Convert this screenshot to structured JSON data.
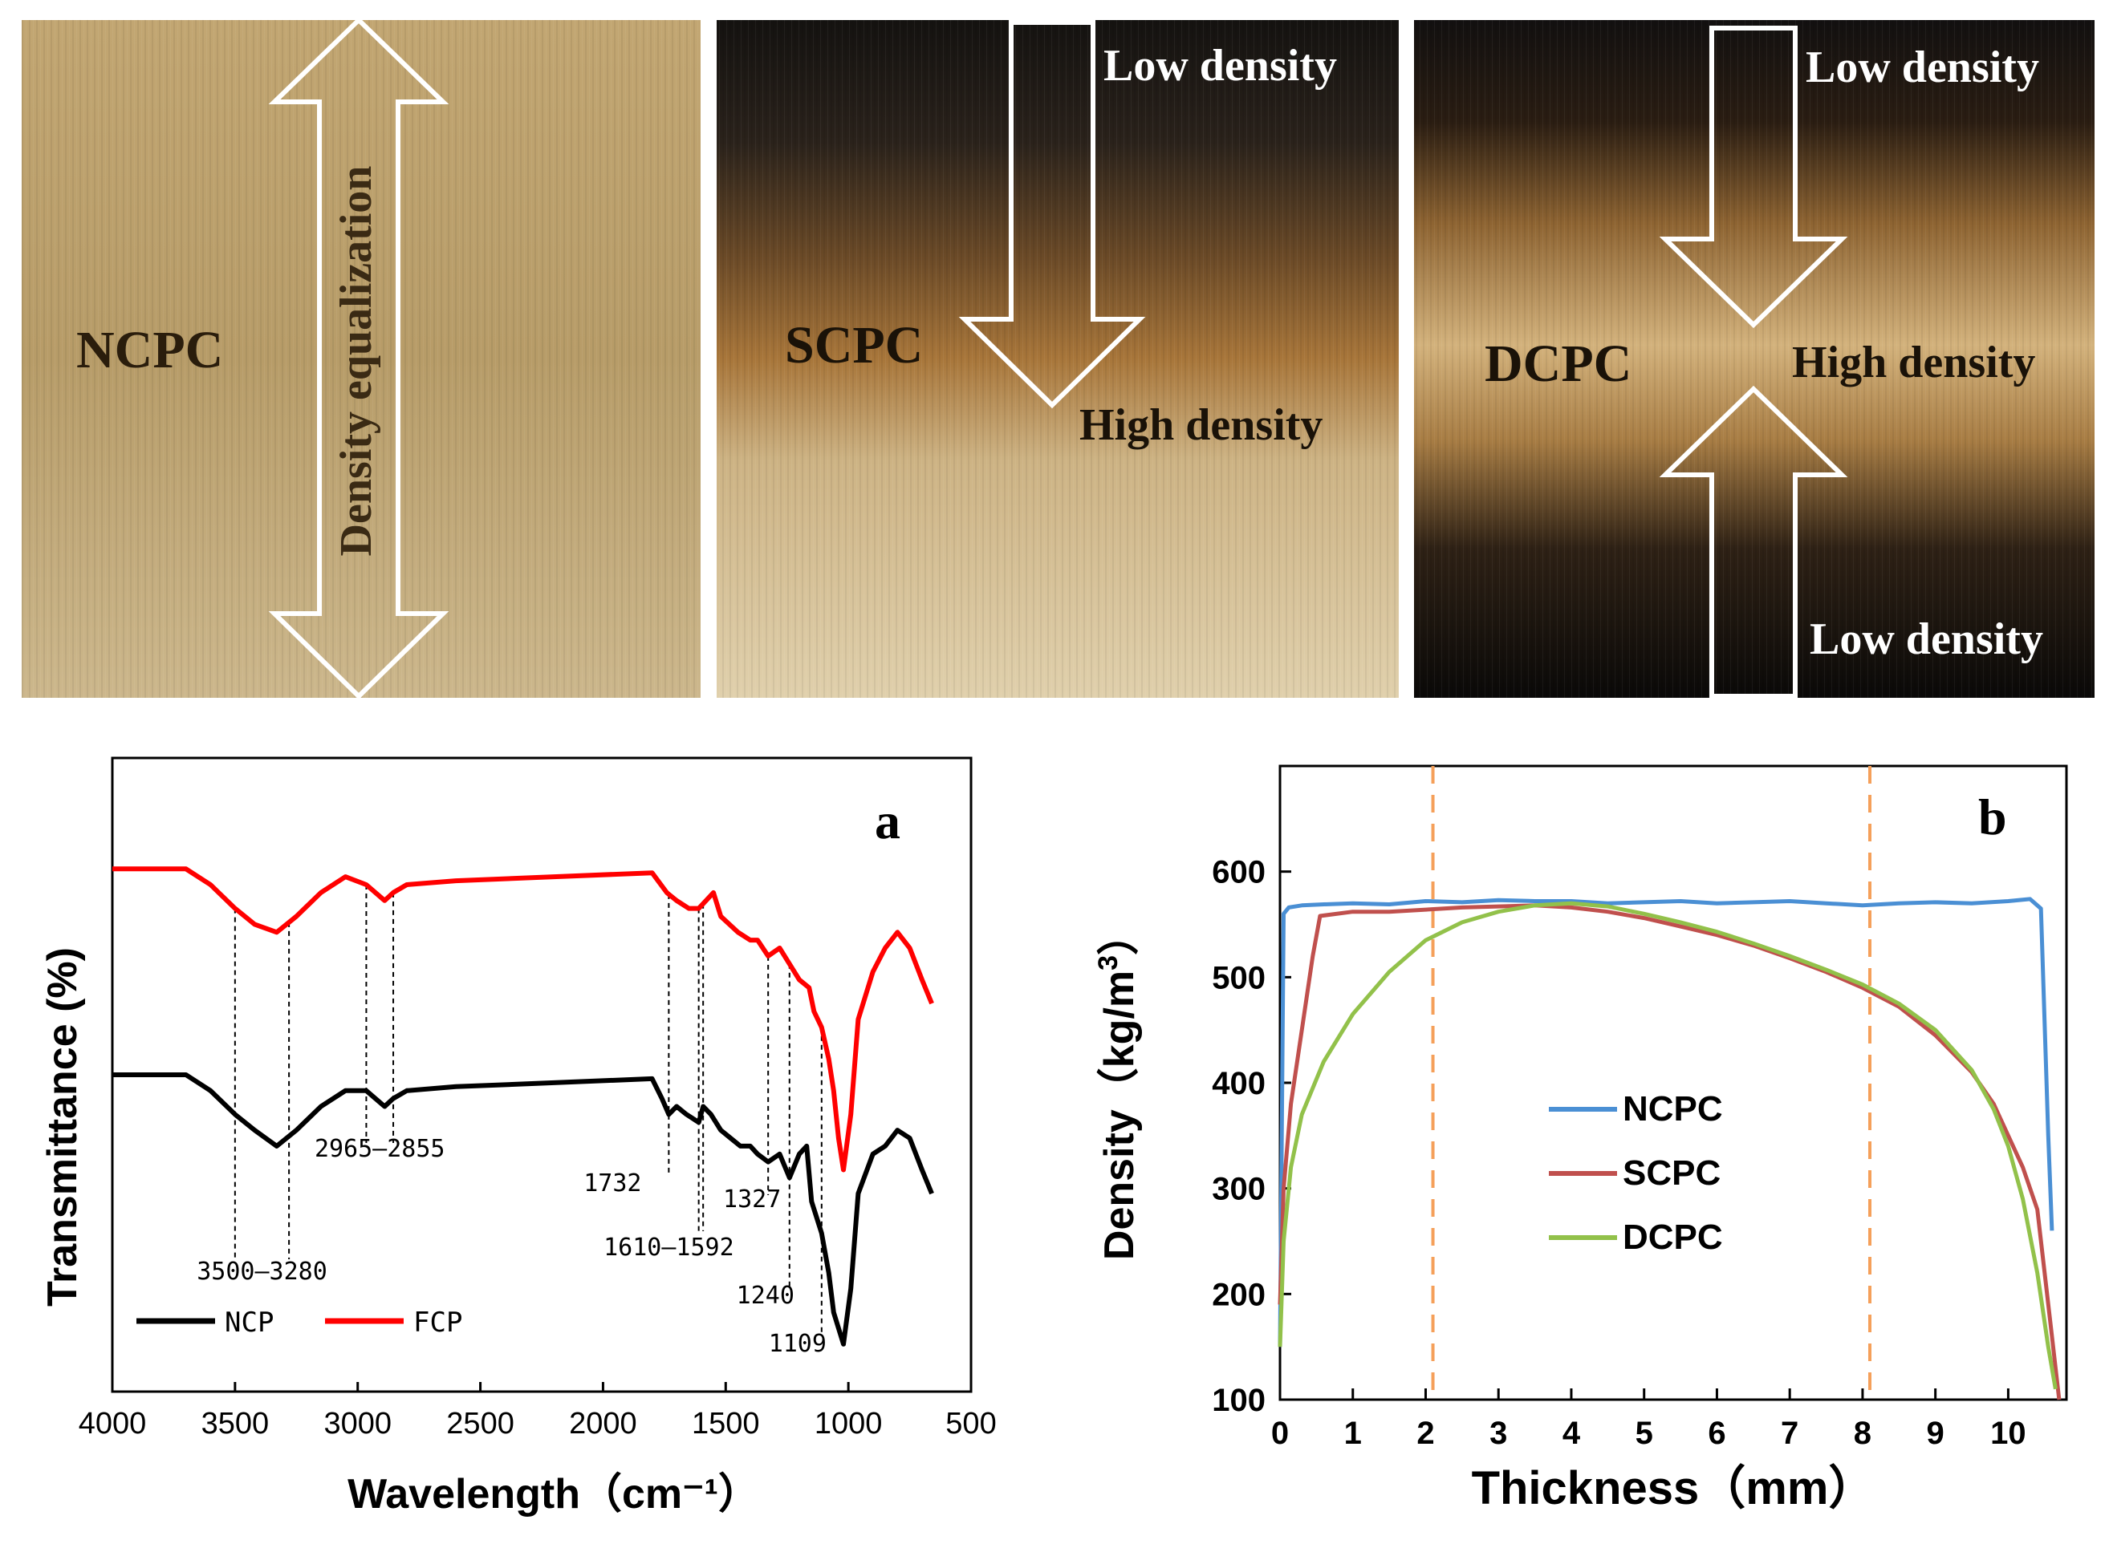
{
  "photos": [
    {
      "sample": "NCPC",
      "arrow_label": "Density equalization",
      "colors": {
        "top": "#c2a672",
        "mid": "#b79c68",
        "bottom": "#ccb78c"
      }
    },
    {
      "sample": "SCPC",
      "labels": [
        "Low density",
        "High density"
      ],
      "colors": {
        "top": "#1c1a17",
        "mid": "#a46f33",
        "bottom": "#dcc9a0"
      }
    },
    {
      "sample": "DCPC",
      "labels": [
        "Low density",
        "High density",
        "Low density"
      ],
      "colors": {
        "top": "#161310",
        "mid": "#c8a26a",
        "bottom": "#0c0a08"
      }
    }
  ],
  "chart_data": [
    {
      "type": "line",
      "panel_label": "a",
      "xlabel": "Wavelength（cm⁻¹）",
      "ylabel": "Transmittance (%)",
      "xlim": [
        4000,
        500
      ],
      "xticks": [
        4000,
        3500,
        3000,
        2500,
        2000,
        1500,
        1000,
        500
      ],
      "y_ticks_shown": false,
      "series": [
        {
          "name": "FCP",
          "color": "#ff0000",
          "x": [
            4000,
            3700,
            3600,
            3500,
            3420,
            3330,
            3250,
            3150,
            3050,
            2965,
            2890,
            2855,
            2800,
            2600,
            2200,
            1800,
            1740,
            1700,
            1650,
            1610,
            1580,
            1550,
            1520,
            1450,
            1400,
            1370,
            1327,
            1280,
            1240,
            1200,
            1160,
            1140,
            1109,
            1080,
            1060,
            1040,
            1020,
            990,
            960,
            900,
            850,
            800,
            750,
            700,
            660
          ],
          "y": [
            86,
            86,
            84,
            81,
            79,
            78,
            80,
            83,
            85,
            84,
            82,
            83,
            84,
            84.5,
            85,
            85.5,
            83,
            82,
            81,
            81,
            82,
            83,
            80,
            78,
            77,
            77,
            75,
            76,
            74,
            72,
            71,
            68,
            66,
            62,
            58,
            52,
            48,
            55,
            67,
            73,
            76,
            78,
            76,
            72,
            69
          ]
        },
        {
          "name": "NCP",
          "color": "#000000",
          "x": [
            4000,
            3700,
            3600,
            3500,
            3420,
            3330,
            3250,
            3150,
            3050,
            2965,
            2890,
            2855,
            2800,
            2600,
            2200,
            1800,
            1760,
            1732,
            1700,
            1660,
            1610,
            1592,
            1560,
            1520,
            1480,
            1440,
            1400,
            1370,
            1327,
            1280,
            1240,
            1200,
            1170,
            1150,
            1109,
            1080,
            1060,
            1040,
            1020,
            990,
            960,
            900,
            850,
            800,
            750,
            700,
            660
          ],
          "y": [
            60,
            60,
            58,
            55,
            53,
            51,
            53,
            56,
            58,
            58,
            56,
            57,
            58,
            58.5,
            59,
            59.5,
            57,
            55,
            56,
            55,
            54,
            56,
            55,
            53,
            52,
            51,
            51,
            50,
            49,
            50,
            47,
            50,
            51,
            44,
            40,
            35,
            30,
            28,
            26,
            33,
            45,
            50,
            51,
            53,
            52,
            48,
            45
          ]
        }
      ],
      "annotations": [
        {
          "x": [
            3500,
            3280
          ],
          "label": "3500—3280"
        },
        {
          "x": [
            2965,
            2855
          ],
          "label": "2965—2855"
        },
        {
          "x": [
            1732
          ],
          "label": "1732"
        },
        {
          "x": [
            1610,
            1592
          ],
          "label": "1610—1592"
        },
        {
          "x": [
            1327
          ],
          "label": "1327"
        },
        {
          "x": [
            1240
          ],
          "label": "1240"
        },
        {
          "x": [
            1109
          ],
          "label": "1109"
        }
      ],
      "legend": [
        "NCP",
        "FCP"
      ]
    },
    {
      "type": "line",
      "panel_label": "b",
      "xlabel": "Thickness（mm）",
      "ylabel": "Density (kg/m3)",
      "ylabel_parts": {
        "main": "Density（kg/m",
        "sup": "3",
        "end": "）"
      },
      "xlim": [
        0,
        10.8
      ],
      "ylim": [
        100,
        700
      ],
      "xticks": [
        0,
        1,
        2,
        3,
        4,
        5,
        6,
        7,
        8,
        9,
        10
      ],
      "yticks": [
        100,
        200,
        300,
        400,
        500,
        600
      ],
      "vlines": [
        2.1,
        8.1
      ],
      "vline_color": "#f5a05a",
      "series": [
        {
          "name": "NCPC",
          "color": "#4a8fd4",
          "x": [
            0,
            0.05,
            0.12,
            0.3,
            0.6,
            1,
            1.5,
            2,
            2.5,
            3,
            3.5,
            4,
            4.5,
            5,
            5.5,
            6,
            6.5,
            7,
            7.5,
            8,
            8.5,
            9,
            9.5,
            10,
            10.3,
            10.45,
            10.55,
            10.6
          ],
          "y": [
            150,
            560,
            566,
            568,
            569,
            570,
            569,
            572,
            571,
            573,
            572,
            572,
            570,
            571,
            572,
            570,
            571,
            572,
            570,
            568,
            570,
            571,
            570,
            572,
            574,
            565,
            350,
            260
          ]
        },
        {
          "name": "SCPC",
          "color": "#c0504d",
          "x": [
            0,
            0.05,
            0.15,
            0.3,
            0.45,
            0.55,
            1,
            1.5,
            2,
            2.5,
            3,
            3.5,
            4,
            4.5,
            5,
            5.5,
            6,
            6.5,
            7,
            7.5,
            8,
            8.5,
            9,
            9.5,
            9.8,
            10,
            10.2,
            10.4,
            10.6,
            10.7
          ],
          "y": [
            190,
            300,
            380,
            450,
            520,
            558,
            562,
            562,
            564,
            566,
            567,
            568,
            566,
            562,
            556,
            548,
            540,
            530,
            518,
            505,
            490,
            472,
            445,
            410,
            380,
            350,
            320,
            280,
            160,
            100
          ]
        },
        {
          "name": "DCPC",
          "color": "#92c14a",
          "x": [
            0,
            0.05,
            0.15,
            0.3,
            0.6,
            1,
            1.5,
            2,
            2.5,
            3,
            3.5,
            4,
            4.5,
            5,
            5.5,
            6,
            6.5,
            7,
            7.5,
            8,
            8.5,
            9,
            9.5,
            9.8,
            10,
            10.2,
            10.4,
            10.55,
            10.65
          ],
          "y": [
            150,
            250,
            320,
            370,
            420,
            465,
            505,
            535,
            552,
            562,
            568,
            570,
            567,
            560,
            552,
            543,
            532,
            520,
            507,
            493,
            475,
            450,
            412,
            375,
            340,
            290,
            220,
            150,
            110
          ]
        }
      ],
      "legend": [
        "NCPC",
        "SCPC",
        "DCPC"
      ]
    }
  ]
}
